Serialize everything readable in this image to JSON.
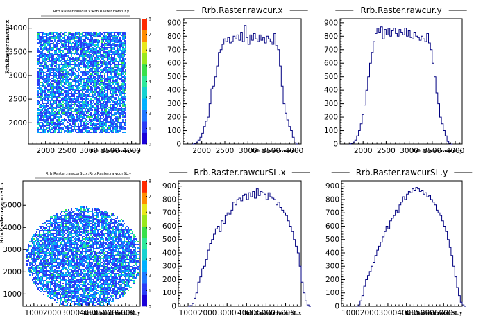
{
  "panels": [
    {
      "kind": "heat2d",
      "title": "Rrb.Raster.rawcur.x:Rrb.Raster.rawcur.y",
      "xlabel": "Rrb.Raster.rawcur.y",
      "ylabel": "Rrb.Raster.rawcur.x",
      "xticks": [
        2000,
        2500,
        3000,
        3500,
        4000
      ],
      "yticks": [
        2000,
        2500,
        3000,
        3500,
        4000
      ],
      "yticklabels": [
        "2000",
        "2500",
        "3000",
        "3500",
        "4000"
      ],
      "xlim": [
        1600,
        4200
      ],
      "ylim": [
        1550,
        4200
      ],
      "shape": "rect",
      "region": [
        1800,
        3850,
        1800,
        3950
      ],
      "zticks": [
        0,
        1,
        2,
        3,
        4,
        5,
        6,
        7,
        8
      ]
    },
    {
      "kind": "hist",
      "title": "Rrb.Raster.rawcur.x",
      "xlabel": "Rrb.Raster.rawcur.x",
      "xticks": [
        2000,
        2500,
        3000,
        3500,
        4000
      ],
      "yticks": [
        0,
        100,
        200,
        300,
        400,
        500,
        600,
        700,
        800,
        900
      ],
      "xlim": [
        1600,
        4150
      ],
      "ylim": [
        0,
        930
      ],
      "hist": {
        "start": 1800,
        "width": 40,
        "counts": [
          0,
          5,
          15,
          30,
          50,
          80,
          130,
          170,
          200,
          300,
          410,
          430,
          500,
          580,
          680,
          700,
          740,
          780,
          760,
          790,
          750,
          760,
          800,
          780,
          810,
          770,
          830,
          760,
          880,
          790,
          740,
          810,
          770,
          820,
          780,
          760,
          810,
          770,
          790,
          750,
          800,
          780,
          760,
          740,
          820,
          730,
          700,
          580,
          430,
          300,
          230,
          180,
          130,
          100,
          50,
          10,
          0
        ]
      }
    },
    {
      "kind": "hist",
      "title": "Rrb.Raster.rawcur.y",
      "xlabel": "Rrb.Raster.rawcur.y",
      "xticks": [
        2000,
        2500,
        3000,
        3500,
        4000
      ],
      "yticks": [
        0,
        100,
        200,
        300,
        400,
        500,
        600,
        700,
        800,
        900
      ],
      "xlim": [
        1500,
        4150
      ],
      "ylim": [
        0,
        930
      ],
      "hist": {
        "start": 1700,
        "width": 40,
        "counts": [
          0,
          5,
          15,
          30,
          60,
          100,
          150,
          220,
          290,
          400,
          500,
          600,
          680,
          760,
          820,
          860,
          830,
          870,
          780,
          850,
          810,
          860,
          800,
          840,
          860,
          820,
          800,
          850,
          830,
          810,
          860,
          800,
          840,
          790,
          780,
          830,
          800,
          790,
          770,
          800,
          780,
          760,
          820,
          750,
          700,
          600,
          500,
          380,
          300,
          200,
          150,
          100,
          60,
          20,
          5,
          0
        ]
      }
    },
    {
      "kind": "heat2d",
      "title": "Rrb.Raster.rawcurSL.x:Rrb.Raster.rawcurSL.y",
      "xlabel": "Rrb.Raster.rawcurSL.y",
      "ylabel": "Rrb.Raster.rawcurSL.x",
      "xticks": [
        1000,
        2000,
        3000,
        4000,
        5000,
        6000
      ],
      "yticks": [
        1000,
        2000,
        3000,
        4000,
        5000
      ],
      "yticklabels": [
        "1000",
        "2000",
        "3000",
        "4000",
        "5000"
      ],
      "xlim": [
        400,
        6800
      ],
      "ylim": [
        450,
        6100
      ],
      "shape": "ellipse",
      "region": [
        3700,
        2650,
        3150,
        2300
      ],
      "zticks": [
        0,
        1,
        2,
        3,
        4,
        5,
        6,
        7,
        8
      ]
    },
    {
      "kind": "hist",
      "title": "Rrb.Raster.rawcurSL.x",
      "xlabel": "Rrb.Raster.rawcurSL.x",
      "xticks": [
        1000,
        2000,
        3000,
        4000,
        5000,
        6000
      ],
      "yticks": [
        0,
        100,
        200,
        300,
        400,
        500,
        600,
        700,
        800,
        900
      ],
      "xlim": [
        500,
        6800
      ],
      "ylim": [
        0,
        940
      ],
      "hist": {
        "start": 1000,
        "width": 100,
        "counts": [
          0,
          5,
          20,
          60,
          100,
          180,
          220,
          280,
          300,
          350,
          420,
          470,
          500,
          540,
          580,
          600,
          560,
          640,
          620,
          680,
          700,
          690,
          720,
          780,
          760,
          800,
          810,
          790,
          830,
          840,
          800,
          850,
          820,
          860,
          810,
          880,
          830,
          860,
          850,
          840,
          800,
          850,
          820,
          810,
          800,
          760,
          780,
          740,
          720,
          700,
          680,
          640,
          600,
          560,
          500,
          450,
          400,
          300,
          180,
          100,
          40,
          10,
          0
        ]
      }
    },
    {
      "kind": "hist",
      "title": "Rrb.Raster.rawcurSL.y",
      "xlabel": "Rrb.Raster.rawcurSL.y",
      "xticks": [
        1000,
        2000,
        3000,
        4000,
        5000,
        6000
      ],
      "yticks": [
        0,
        100,
        200,
        300,
        400,
        500,
        600,
        700,
        800,
        900
      ],
      "xlim": [
        500,
        7000
      ],
      "ylim": [
        0,
        940
      ],
      "hist": {
        "start": 1300,
        "width": 100,
        "counts": [
          0,
          10,
          40,
          80,
          150,
          200,
          230,
          260,
          300,
          330,
          380,
          420,
          450,
          480,
          520,
          560,
          600,
          580,
          640,
          660,
          680,
          720,
          700,
          760,
          780,
          820,
          800,
          840,
          860,
          850,
          880,
          870,
          890,
          880,
          860,
          870,
          840,
          850,
          820,
          830,
          800,
          780,
          760,
          720,
          700,
          680,
          640,
          600,
          560,
          500,
          440,
          380,
          300,
          220,
          140,
          80,
          30,
          10,
          0
        ]
      }
    }
  ]
}
